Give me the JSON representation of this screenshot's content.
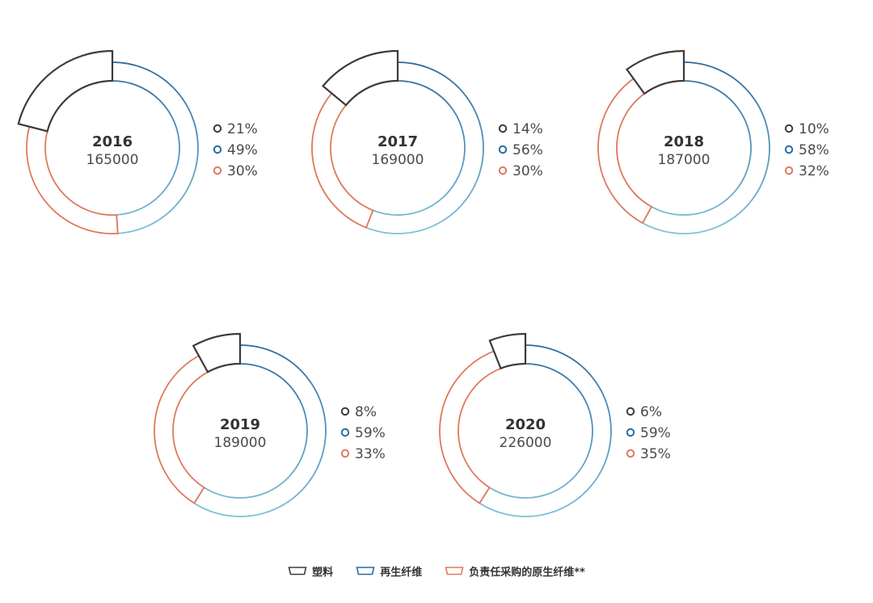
{
  "colors": {
    "plastic": "#3d3a3a",
    "recycled_fiber_start": "#2b6a9c",
    "recycled_fiber_end": "#7fc0d8",
    "virgin_fiber": "#e0785c",
    "virgin_fiber_dark": "#d0644a",
    "text": "#333333",
    "text_light": "#4a4a4a"
  },
  "legend": [
    {
      "key": "plastic",
      "label": "塑料",
      "icon": "plastic-swatch"
    },
    {
      "key": "recycled",
      "label": "再生纤维",
      "icon": "recycled-fiber-swatch"
    },
    {
      "key": "virgin",
      "label": "负责任采购的原生纤维**",
      "icon": "virgin-fiber-swatch"
    }
  ],
  "chart_data": {
    "type": "donut",
    "series_keys": [
      "plastic",
      "recycled",
      "virgin"
    ],
    "items": [
      {
        "year": "2016",
        "total": "165000",
        "values": [
          21,
          49,
          30
        ],
        "labels": [
          "21%",
          "49%",
          "30%"
        ]
      },
      {
        "year": "2017",
        "total": "169000",
        "values": [
          14,
          56,
          30
        ],
        "labels": [
          "14%",
          "56%",
          "30%"
        ]
      },
      {
        "year": "2018",
        "total": "187000",
        "values": [
          10,
          58,
          32
        ],
        "labels": [
          "10%",
          "58%",
          "32%"
        ]
      },
      {
        "year": "2019",
        "total": "189000",
        "values": [
          8,
          59,
          33
        ],
        "labels": [
          "8%",
          "59%",
          "33%"
        ]
      },
      {
        "year": "2020",
        "total": "226000",
        "values": [
          6,
          59,
          35
        ],
        "labels": [
          "6%",
          "59%",
          "35%"
        ]
      }
    ]
  }
}
